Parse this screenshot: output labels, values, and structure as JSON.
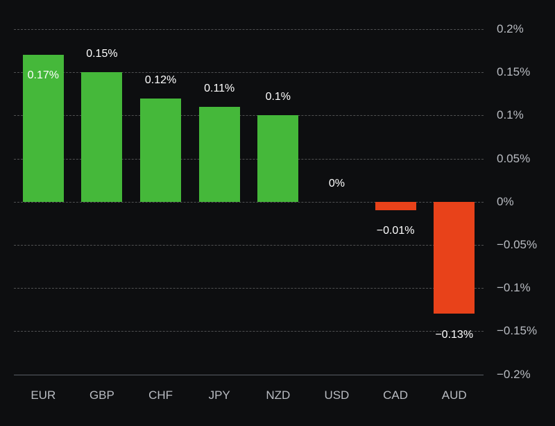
{
  "chart_data": {
    "type": "bar",
    "title": "",
    "xlabel": "",
    "ylabel": "",
    "categories": [
      "EUR",
      "GBP",
      "CHF",
      "JPY",
      "NZD",
      "USD",
      "CAD",
      "AUD"
    ],
    "values": [
      0.17,
      0.15,
      0.12,
      0.11,
      0.1,
      0,
      -0.01,
      -0.13
    ],
    "value_labels": [
      "0.17%",
      "0.15%",
      "0.12%",
      "0.11%",
      "0.1%",
      "0%",
      "−0.01%",
      "−0.13%"
    ],
    "value_label_positions": [
      "inside-top",
      "above",
      "above",
      "above",
      "above",
      "above",
      "below",
      "below"
    ],
    "ylim": [
      -0.2,
      0.2
    ],
    "y_ticks": [
      {
        "value": 0.2,
        "label": "0.2%"
      },
      {
        "value": 0.15,
        "label": "0.15%"
      },
      {
        "value": 0.1,
        "label": "0.1%"
      },
      {
        "value": 0.05,
        "label": "0.05%"
      },
      {
        "value": 0,
        "label": "0%"
      },
      {
        "value": -0.05,
        "label": "−0.05%"
      },
      {
        "value": -0.1,
        "label": "−0.1%"
      },
      {
        "value": -0.15,
        "label": "−0.15%"
      },
      {
        "value": -0.2,
        "label": "−0.2%"
      }
    ],
    "grid": "horizontal-dashed",
    "legend": "none",
    "colors": {
      "positive_bar": "#45b83a",
      "negative_bar": "#e8421a",
      "background": "#0d0e10",
      "grid_line": "rgba(255,255,255,0.28)",
      "baseline": "#5a5e65",
      "tick_text": "#b9bcc2",
      "category_text": "#b9bcc2",
      "value_text": "#ffffff"
    }
  }
}
